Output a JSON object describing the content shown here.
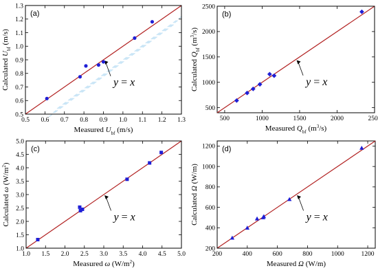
{
  "colors": {
    "line": "#b22222",
    "marker": "#1f1fd6",
    "frame": "#000000",
    "watermark": "#bfe0f5"
  },
  "chart_data": [
    {
      "type": "scatter",
      "label": "(a)",
      "marker": "circle",
      "equation": "y = x",
      "xlabel": {
        "pre": "Measured ",
        "sym": "U",
        "sub": "bf",
        "unit": " (m/s)"
      },
      "ylabel": {
        "pre": "Calculated ",
        "sym": "U",
        "sub": "bf",
        "unit": " (m/s)"
      },
      "xlim": [
        0.5,
        1.3
      ],
      "ylim": [
        0.5,
        1.3
      ],
      "xticks": [
        "0.5",
        "0.6",
        "0.7",
        "0.8",
        "0.9",
        "1.0",
        "1.1",
        "1.2",
        "1.3"
      ],
      "yticks": [
        "0.5",
        "0.6",
        "0.7",
        "0.8",
        "0.9",
        "1.0",
        "1.1",
        "1.2",
        "1.3"
      ],
      "reference_line": "y = x",
      "points": [
        [
          0.61,
          0.615
        ],
        [
          0.78,
          0.775
        ],
        [
          0.81,
          0.855
        ],
        [
          0.875,
          0.862
        ],
        [
          0.9,
          0.885
        ],
        [
          1.06,
          1.06
        ],
        [
          1.15,
          1.18
        ]
      ]
    },
    {
      "type": "scatter",
      "label": "(b)",
      "marker": "diamond",
      "equation": "y = x",
      "xlabel": {
        "pre": "Measured ",
        "sym": "Q",
        "sub": "bf",
        "unit": " (m",
        "sup": "3",
        "unit2": "/s)"
      },
      "ylabel": {
        "pre": "Calculated ",
        "sym": "Q",
        "sub": "bf",
        "unit": " (m",
        "sup": "3",
        "unit2": "/s)"
      },
      "xlim": [
        400,
        2500
      ],
      "ylim": [
        400,
        2500
      ],
      "xticks": [
        "500",
        "1000",
        "1500",
        "2000",
        "2500"
      ],
      "yticks": [
        "500",
        "1000",
        "1500",
        "2000",
        "2500"
      ],
      "reference_line": "y = x",
      "points": [
        [
          660,
          640
        ],
        [
          800,
          790
        ],
        [
          880,
          870
        ],
        [
          970,
          960
        ],
        [
          1100,
          1160
        ],
        [
          1160,
          1130
        ],
        [
          2330,
          2390
        ]
      ]
    },
    {
      "type": "scatter",
      "label": "(c)",
      "marker": "square",
      "equation": "y = x",
      "xlabel": {
        "pre": "Measured ",
        "sym": "ω",
        "sub": "",
        "unit": " (W/m",
        "sup": "2",
        "unit2": ")"
      },
      "ylabel": {
        "pre": "Calculated ",
        "sym": "ω",
        "sub": "",
        "unit": " (W/m",
        "sup": "2",
        "unit2": ")"
      },
      "xlim": [
        1.0,
        5.0
      ],
      "ylim": [
        1.0,
        5.0
      ],
      "xticks": [
        "1.0",
        "1.5",
        "2.0",
        "2.5",
        "3.0",
        "3.5",
        "4.0",
        "4.5",
        "5.0"
      ],
      "yticks": [
        "1.0",
        "1.5",
        "2.0",
        "2.5",
        "3.0",
        "3.5",
        "4.0",
        "4.5",
        "5.0"
      ],
      "reference_line": "y = x",
      "points": [
        [
          1.3,
          1.32
        ],
        [
          2.38,
          2.53
        ],
        [
          2.4,
          2.4
        ],
        [
          2.45,
          2.45
        ],
        [
          3.6,
          3.57
        ],
        [
          4.18,
          4.18
        ],
        [
          4.48,
          4.57
        ]
      ]
    },
    {
      "type": "scatter",
      "label": "(d)",
      "marker": "triangle",
      "equation": "y = x",
      "xlabel": {
        "pre": "Measured ",
        "sym": "Ω",
        "sub": "",
        "unit": " (W/m)"
      },
      "ylabel": {
        "pre": "Calculated ",
        "sym": "Ω",
        "sub": "",
        "unit": " (W/m)"
      },
      "xlim": [
        200,
        1250
      ],
      "ylim": [
        200,
        1250
      ],
      "xticks": [
        "200",
        "400",
        "600",
        "800",
        "1000",
        "1200"
      ],
      "yticks": [
        "200",
        "400",
        "600",
        "800",
        "1000",
        "1200"
      ],
      "reference_line": "y = x",
      "points": [
        [
          300,
          300
        ],
        [
          400,
          398
        ],
        [
          465,
          488
        ],
        [
          505,
          500
        ],
        [
          510,
          510
        ],
        [
          680,
          678
        ],
        [
          1160,
          1180
        ]
      ]
    }
  ]
}
